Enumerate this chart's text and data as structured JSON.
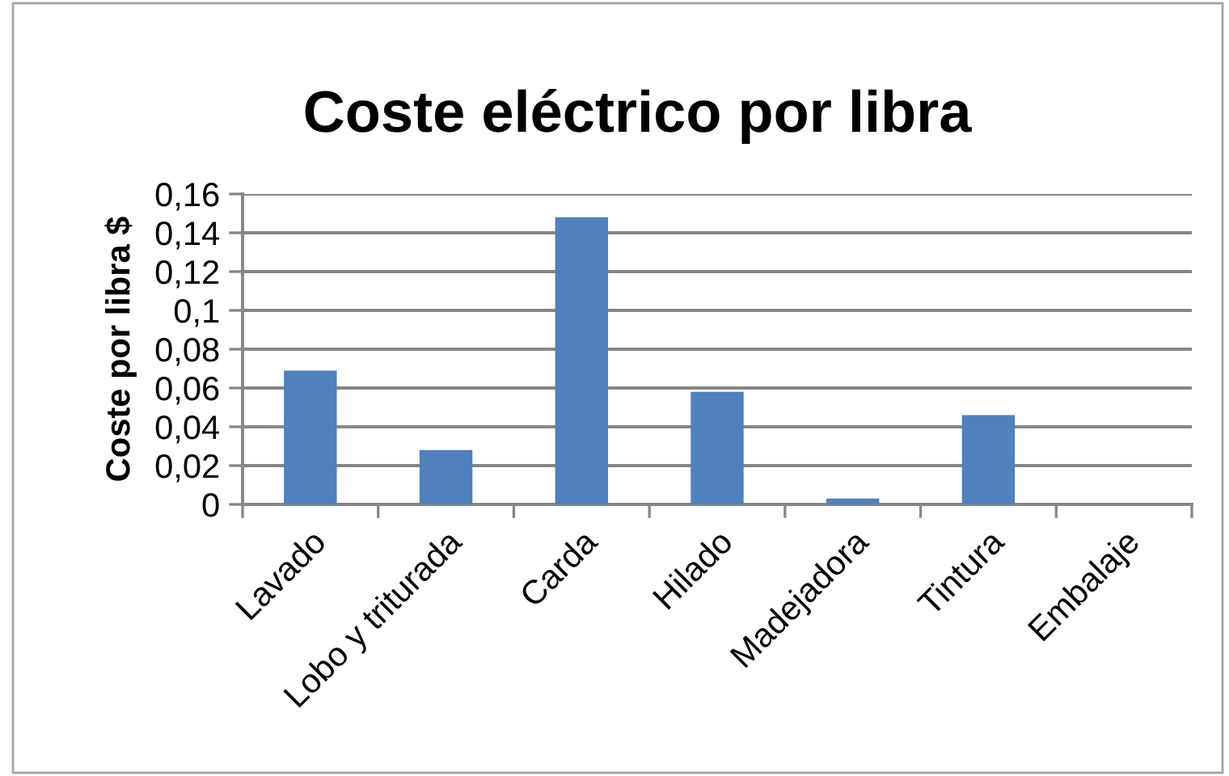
{
  "chart_data": {
    "type": "bar",
    "title": "Coste eléctrico por libra",
    "ylabel": "Coste por libra $",
    "categories": [
      "Lavado",
      "Lobo y triturada",
      "Carda",
      "Hilado",
      "Madejadora",
      "Tintura",
      "Embalaje"
    ],
    "values": [
      0.069,
      0.028,
      0.148,
      0.058,
      0.003,
      0.046,
      0
    ],
    "color": "#4f81bd",
    "ylim": [
      0,
      0.16
    ],
    "yticks": [
      0,
      {
        "value": 0.02,
        "label": "0,02"
      },
      {
        "value": 0.04,
        "label": "0,04"
      },
      {
        "value": 0.06,
        "label": "0,06"
      },
      {
        "value": 0.08,
        "label": "0,08"
      },
      {
        "value": 0.1,
        "label": "0,1"
      },
      {
        "value": 0.12,
        "label": "0,12"
      },
      {
        "value": 0.14,
        "label": "0,14"
      },
      {
        "value": 0.16,
        "label": "0,16"
      }
    ],
    "grid": "y",
    "legend": false
  }
}
